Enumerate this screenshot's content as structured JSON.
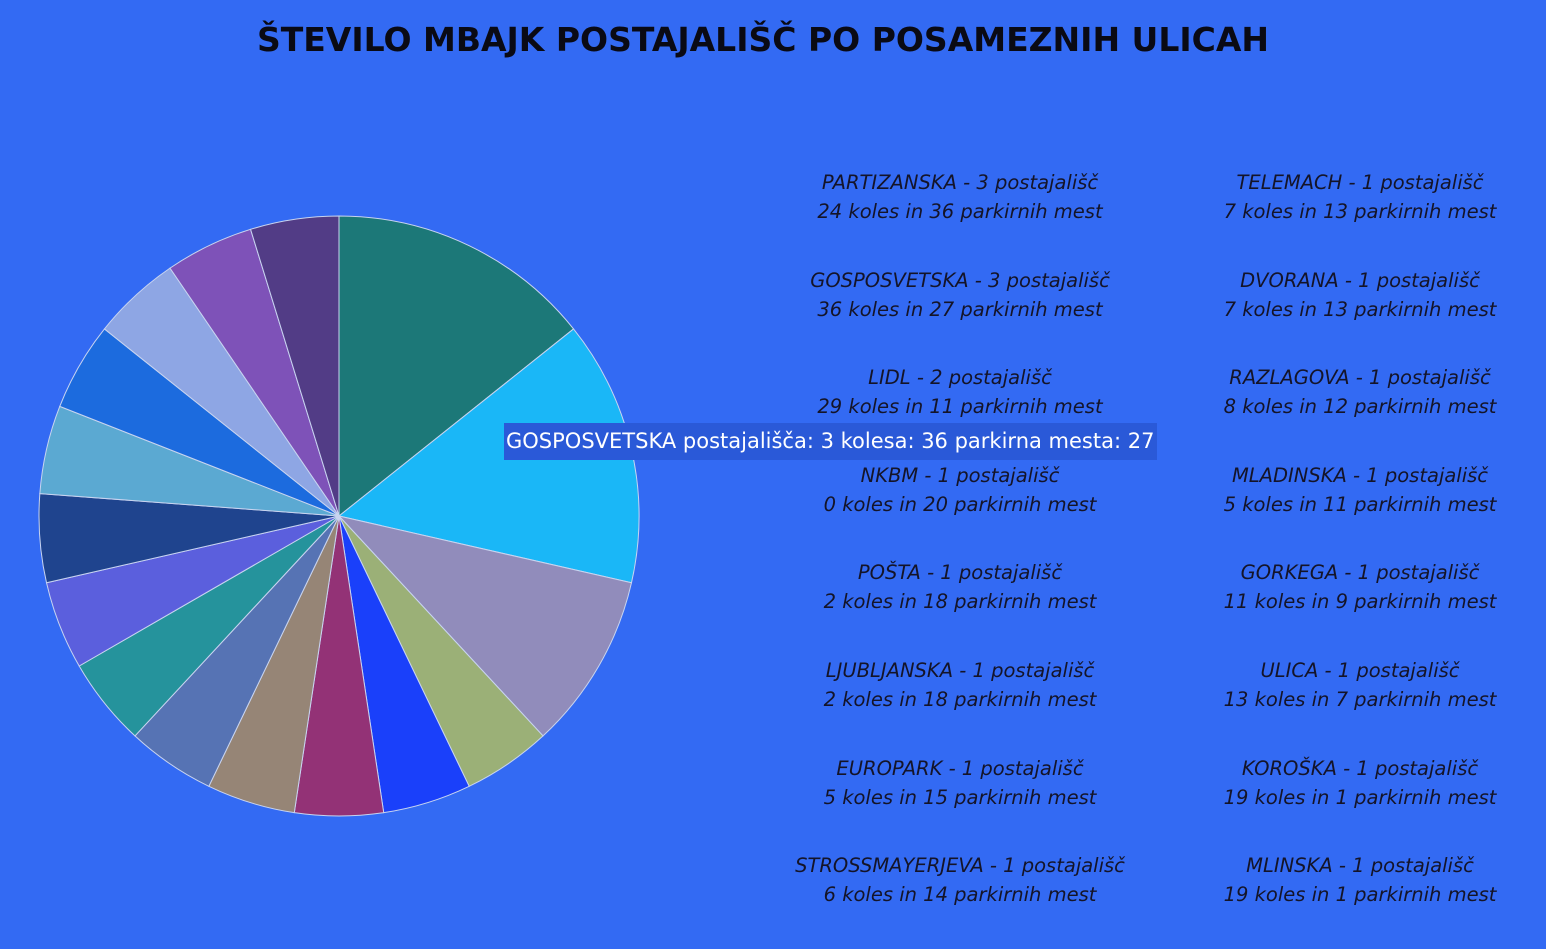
{
  "chart_data": {
    "type": "pie",
    "title": "ŠTEVILO MBAJK POSTAJALIŠČ PO POSAMEZNIH ULICAH",
    "categories": [
      "PARTIZANSKA",
      "GOSPOSVETSKA",
      "LIDL",
      "NKBM",
      "POŠTA",
      "LJUBLJANSKA",
      "EUROPARK",
      "STROSSMAYERJEVA",
      "TELEMACH",
      "DVORANA",
      "RAZLAGOVA",
      "MLADINSKA",
      "GORKEGA",
      "ULICA",
      "KOROŠKA",
      "MLINSKA"
    ],
    "values": [
      3,
      3,
      2,
      1,
      1,
      1,
      1,
      1,
      1,
      1,
      1,
      1,
      1,
      1,
      1,
      1
    ],
    "colors": [
      "#1c7878",
      "#1ab7f7",
      "#918cbb",
      "#9bb077",
      "#1a40fa",
      "#933276",
      "#968576",
      "#5673b4",
      "#25939c",
      "#5b5fdd",
      "#1f448e",
      "#5ba9d2",
      "#1c6bde",
      "#8ea6e4",
      "#7e52b8",
      "#523c86"
    ],
    "slice_order": [
      0,
      1,
      2,
      3,
      4,
      5,
      6,
      7,
      8,
      9,
      10,
      11,
      12,
      13,
      14,
      15
    ],
    "legend": [
      {
        "line1": "PARTIZANSKA - 3 postajališč",
        "line2": "24 koles in 36 parkirnih mest"
      },
      {
        "line1": "TELEMACH - 1 postajališč",
        "line2": "7 koles in 13 parkirnih mest"
      },
      {
        "line1": "GOSPOSVETSKA - 3 postajališč",
        "line2": "36 koles in 27 parkirnih mest"
      },
      {
        "line1": "DVORANA - 1 postajališč",
        "line2": "7 koles in 13 parkirnih mest"
      },
      {
        "line1": "LIDL - 2 postajališč",
        "line2": "29 koles in 11 parkirnih mest"
      },
      {
        "line1": "RAZLAGOVA - 1 postajališč",
        "line2": "8 koles in 12 parkirnih mest"
      },
      {
        "line1": "NKBM - 1 postajališč",
        "line2": "0 koles in 20 parkirnih mest"
      },
      {
        "line1": "MLADINSKA - 1 postajališč",
        "line2": "5 koles in 11 parkirnih mest"
      },
      {
        "line1": "POŠTA - 1 postajališč",
        "line2": "2 koles in 18 parkirnih mest"
      },
      {
        "line1": "GORKEGA - 1 postajališč",
        "line2": "11 koles in 9 parkirnih mest"
      },
      {
        "line1": "LJUBLJANSKA - 1 postajališč",
        "line2": "2 koles in 18 parkirnih mest"
      },
      {
        "line1": "ULICA - 1 postajališč",
        "line2": "13 koles in 7 parkirnih mest"
      },
      {
        "line1": "EUROPARK - 1 postajališč",
        "line2": "5 koles in 15 parkirnih mest"
      },
      {
        "line1": "KOROŠKA - 1 postajališč",
        "line2": "19 koles in 1 parkirnih mest"
      },
      {
        "line1": "STROSSMAYERJEVA - 1 postajališč",
        "line2": "6 koles in 14 parkirnih mest"
      },
      {
        "line1": "MLINSKA - 1 postajališč",
        "line2": "19 koles in 1 parkirnih mest"
      }
    ],
    "tooltip": "GOSPOSVETSKA postajališča: 3 kolesa: 36 parkirna mesta: 27"
  },
  "colors": {
    "background": "#336af3",
    "slice_border": "#c8d4f0",
    "tooltip_bg": "#2a59d8"
  }
}
